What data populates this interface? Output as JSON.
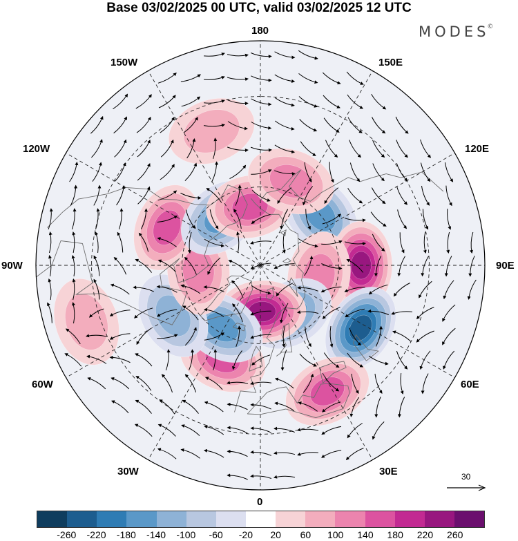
{
  "title": "Base 03/02/2025 00 UTC, valid 03/02/2025 12 UTC",
  "brand": "MODES",
  "brand_mark": "©",
  "longitude_labels": {
    "n180": "180",
    "w150": "150W",
    "e150": "150E",
    "w120": "120W",
    "e120": "120E",
    "w90": "90W",
    "e90": "90E",
    "w60": "60W",
    "e60": "60E",
    "w30": "30W",
    "e30": "30E",
    "s0": "0"
  },
  "reference_vector": {
    "label": "30"
  },
  "colorbar": {
    "ticks": [
      "-260",
      "-220",
      "-180",
      "-140",
      "-100",
      "-60",
      "-20",
      "20",
      "60",
      "100",
      "140",
      "180",
      "220",
      "260"
    ],
    "colors": [
      "#0f3d5e",
      "#1d5d8f",
      "#2f7cb4",
      "#5a98c8",
      "#8eb2d6",
      "#b8c7e0",
      "#dcdff0",
      "#ffffff",
      "#f7d3d6",
      "#f3adbd",
      "#ec84ae",
      "#dc53a0",
      "#c22a92",
      "#98177f",
      "#6b0f6e"
    ]
  },
  "anomaly_centers": [
    {
      "name": "low-east-siberia",
      "lon": 130,
      "lat": 60,
      "value": -150
    },
    {
      "name": "high-central-siberia",
      "lon": 90,
      "lat": 52,
      "value": 240
    },
    {
      "name": "high-west-siberia",
      "lon": 80,
      "lat": 67,
      "value": 120
    },
    {
      "name": "low-caspian",
      "lon": 58,
      "lat": 46,
      "value": -250
    },
    {
      "name": "high-north-africa",
      "lon": 28,
      "lat": 38,
      "value": 170
    },
    {
      "name": "low-scandinavia",
      "lon": 32,
      "lat": 68,
      "value": -170
    },
    {
      "name": "high-greenland-sea",
      "lon": 2,
      "lat": 72,
      "value": 230
    },
    {
      "name": "high-atlantic",
      "lon": -22,
      "lat": 52,
      "value": 140
    },
    {
      "name": "low-labrador",
      "lon": -32,
      "lat": 62,
      "value": -170
    },
    {
      "name": "low-newfoundland",
      "lon": -60,
      "lat": 52,
      "value": -130
    },
    {
      "name": "high-hudson",
      "lon": -85,
      "lat": 66,
      "value": 110
    },
    {
      "name": "high-west-canada",
      "lon": -112,
      "lat": 52,
      "value": 150
    },
    {
      "name": "low-alaska",
      "lon": -140,
      "lat": 66,
      "value": -140
    },
    {
      "name": "high-chukchi",
      "lon": -170,
      "lat": 67,
      "value": 150
    },
    {
      "name": "high-bering",
      "lon": 160,
      "lat": 56,
      "value": 130
    },
    {
      "name": "high-north-pacific",
      "lon": -160,
      "lat": 38,
      "value": 80
    },
    {
      "name": "high-mexico",
      "lon": -72,
      "lat": 26,
      "value": 60
    }
  ]
}
